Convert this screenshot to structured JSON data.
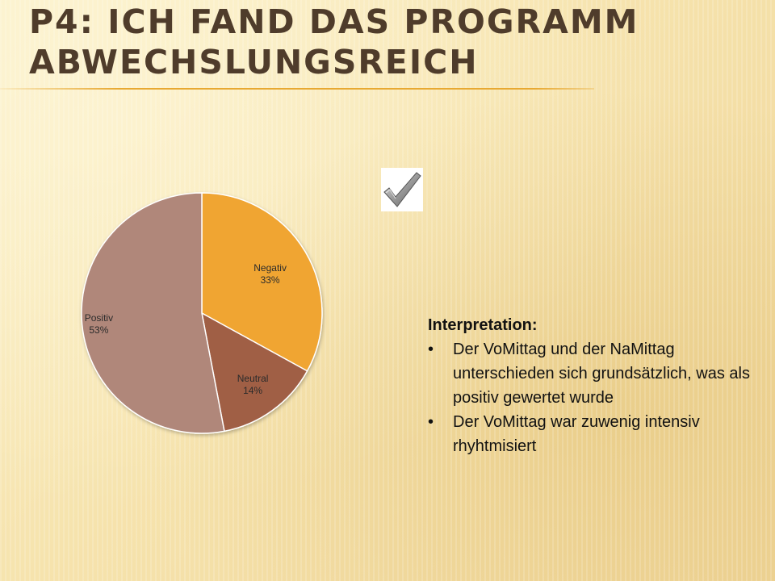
{
  "slide": {
    "title_lines": [
      "P4: ICH FAND DAS PROGRAMM",
      "ABWECHSLUNGSREICH"
    ]
  },
  "chart_data": {
    "type": "pie",
    "slices": [
      {
        "label": "Negativ",
        "value": 33,
        "pct_label": "33%",
        "color": "#f0a532"
      },
      {
        "label": "Neutral",
        "value": 14,
        "pct_label": "14%",
        "color": "#a05f45"
      },
      {
        "label": "Positiv",
        "value": 53,
        "pct_label": "53%",
        "color": "#b0877a"
      }
    ],
    "start": "12 o'clock",
    "direction": "clockwise"
  },
  "checkmark": {
    "icon": "checkmark-icon"
  },
  "interpretation": {
    "heading": "Interpretation:",
    "bullets": [
      "Der VoMittag und der NaMittag unterschieden sich grundsätzlich, was als positiv gewertet wurde",
      "Der VoMittag war zuwenig intensiv rhyhtmisiert"
    ]
  }
}
